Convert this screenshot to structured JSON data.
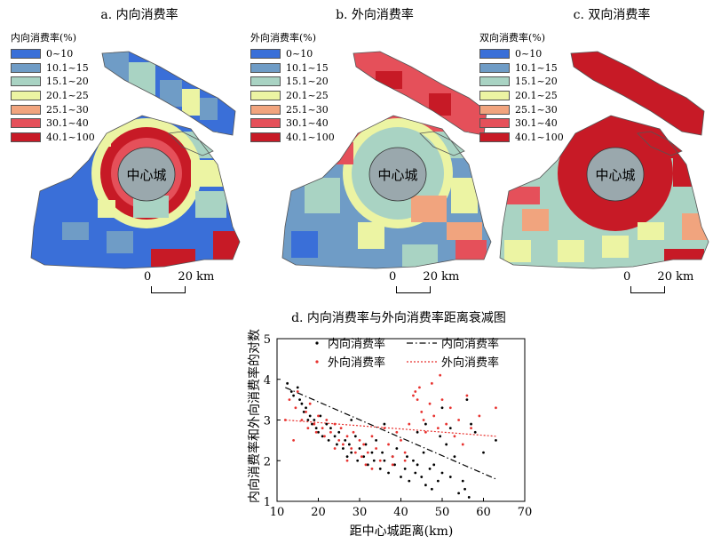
{
  "maps": [
    {
      "title": "a. 内向消费率",
      "legend_title": "内向消费率(%)"
    },
    {
      "title": "b. 外向消费率",
      "legend_title": "外向消费率(%)"
    },
    {
      "title": "c. 双向消费率",
      "legend_title": "双向消费率(%)"
    }
  ],
  "legend_classes": [
    {
      "label": "0~10",
      "color": "#3a6fd8"
    },
    {
      "label": "10.1~15",
      "color": "#6f9cc6"
    },
    {
      "label": "15.1~20",
      "color": "#a9d3c3"
    },
    {
      "label": "20.1~25",
      "color": "#ecf4a3"
    },
    {
      "label": "25.1~30",
      "color": "#f1a47e"
    },
    {
      "label": "30.1~40",
      "color": "#e5505a"
    },
    {
      "label": "40.1~100",
      "color": "#c71a26"
    }
  ],
  "center_label": "中心城",
  "scalebar": {
    "zero": "0",
    "distance": "20 km"
  },
  "chart_data": {
    "type": "scatter",
    "title": "d. 内向消费率与外向消费率距离衰减图",
    "xlabel": "距中心城距离(km)",
    "ylabel": "内向消费率和外向消费率的对数",
    "xlim": [
      10,
      70
    ],
    "ylim": [
      1,
      5
    ],
    "xticks": [
      10,
      20,
      30,
      40,
      50,
      60,
      70
    ],
    "yticks": [
      1,
      2,
      3,
      4,
      5
    ],
    "grid": false,
    "legend_position": "top",
    "series": [
      {
        "name": "内向消费率",
        "color": "#000000",
        "points": [
          [
            12.5,
            3.9
          ],
          [
            13.5,
            3.7
          ],
          [
            14,
            3.6
          ],
          [
            15,
            3.8
          ],
          [
            15.5,
            3.5
          ],
          [
            16,
            3.4
          ],
          [
            16.5,
            3.2
          ],
          [
            17,
            3.3
          ],
          [
            17.5,
            3.0
          ],
          [
            18,
            3.1
          ],
          [
            18.5,
            2.9
          ],
          [
            19,
            3.0
          ],
          [
            19.5,
            2.8
          ],
          [
            20,
            2.7
          ],
          [
            20.5,
            3.1
          ],
          [
            21,
            2.6
          ],
          [
            22,
            2.9
          ],
          [
            22.5,
            2.5
          ],
          [
            23,
            2.8
          ],
          [
            24,
            2.6
          ],
          [
            24.5,
            2.4
          ],
          [
            25,
            2.7
          ],
          [
            26,
            2.3
          ],
          [
            26.5,
            2.5
          ],
          [
            27,
            2.1
          ],
          [
            27.5,
            2.4
          ],
          [
            28,
            2.2
          ],
          [
            29,
            2.6
          ],
          [
            29.5,
            2.0
          ],
          [
            30,
            2.3
          ],
          [
            31,
            2.1
          ],
          [
            31.5,
            2.4
          ],
          [
            32,
            1.9
          ],
          [
            33,
            2.2
          ],
          [
            33.5,
            2.0
          ],
          [
            34,
            2.5
          ],
          [
            35,
            1.8
          ],
          [
            35.5,
            2.2
          ],
          [
            36,
            2.0
          ],
          [
            37,
            1.7
          ],
          [
            38,
            2.1
          ],
          [
            38.5,
            1.9
          ],
          [
            39,
            2.3
          ],
          [
            40,
            1.6
          ],
          [
            41,
            1.8
          ],
          [
            41.5,
            2.1
          ],
          [
            42,
            1.5
          ],
          [
            43,
            2.0
          ],
          [
            43.5,
            1.7
          ],
          [
            44,
            1.9
          ],
          [
            45,
            1.6
          ],
          [
            45.5,
            2.2
          ],
          [
            46,
            1.4
          ],
          [
            47,
            1.8
          ],
          [
            47.5,
            1.3
          ],
          [
            48,
            1.9
          ],
          [
            49,
            1.5
          ],
          [
            49.5,
            2.6
          ],
          [
            50,
            1.7
          ],
          [
            51,
            2.4
          ],
          [
            52,
            1.6
          ],
          [
            53,
            2.1
          ],
          [
            54,
            1.2
          ],
          [
            55,
            1.5
          ],
          [
            55.5,
            1.3
          ],
          [
            56,
            3.5
          ],
          [
            56.5,
            1.1
          ],
          [
            57,
            2.9
          ],
          [
            58,
            2.7
          ],
          [
            60,
            2.2
          ],
          [
            63,
            2.5
          ],
          [
            28,
            3.0
          ],
          [
            36,
            2.9
          ],
          [
            44,
            2.7
          ],
          [
            46,
            2.9
          ],
          [
            50,
            3.3
          ],
          [
            52,
            2.8
          ]
        ]
      },
      {
        "name": "外向消费率",
        "color": "#e8322f",
        "points": [
          [
            13,
            3.5
          ],
          [
            14.5,
            3.3
          ],
          [
            15,
            3.7
          ],
          [
            16,
            3.0
          ],
          [
            17,
            3.2
          ],
          [
            17.5,
            2.8
          ],
          [
            18,
            3.4
          ],
          [
            19,
            2.9
          ],
          [
            19.5,
            2.7
          ],
          [
            20,
            3.1
          ],
          [
            21,
            2.8
          ],
          [
            21.5,
            2.6
          ],
          [
            22,
            3.0
          ],
          [
            23,
            2.7
          ],
          [
            24,
            2.9
          ],
          [
            25,
            2.5
          ],
          [
            25.5,
            2.8
          ],
          [
            26,
            2.4
          ],
          [
            27,
            2.6
          ],
          [
            28,
            2.3
          ],
          [
            28.5,
            2.7
          ],
          [
            29,
            2.2
          ],
          [
            30,
            2.5
          ],
          [
            30.5,
            2.1
          ],
          [
            31,
            2.4
          ],
          [
            31.5,
            1.9
          ],
          [
            32,
            2.2
          ],
          [
            33,
            2.6
          ],
          [
            34,
            2.3
          ],
          [
            35,
            2.0
          ],
          [
            36,
            2.8
          ],
          [
            37,
            2.4
          ],
          [
            38,
            2.1
          ],
          [
            39,
            2.7
          ],
          [
            40,
            2.5
          ],
          [
            41,
            2.2
          ],
          [
            42,
            2.9
          ],
          [
            43,
            3.6
          ],
          [
            43.5,
            3.7
          ],
          [
            44,
            3.5
          ],
          [
            44.5,
            3.8
          ],
          [
            45,
            3.2
          ],
          [
            45.5,
            3.0
          ],
          [
            46,
            2.7
          ],
          [
            47,
            3.4
          ],
          [
            47.5,
            3.9
          ],
          [
            48,
            3.1
          ],
          [
            49,
            2.8
          ],
          [
            49.5,
            4.1
          ],
          [
            50,
            3.5
          ],
          [
            51,
            2.9
          ],
          [
            52,
            3.3
          ],
          [
            53,
            2.6
          ],
          [
            54,
            3.0
          ],
          [
            55,
            2.4
          ],
          [
            56,
            3.6
          ],
          [
            57,
            2.8
          ],
          [
            59,
            3.1
          ],
          [
            63,
            3.3
          ],
          [
            12,
            3.0
          ],
          [
            14,
            2.5
          ],
          [
            24,
            2.3
          ],
          [
            27,
            2.0
          ],
          [
            33,
            1.8
          ],
          [
            38,
            1.9
          ],
          [
            41,
            2.0
          ]
        ]
      }
    ],
    "trendlines": [
      {
        "name": "内向消费率",
        "style": "dash-dot",
        "color": "#000000",
        "x": [
          12,
          63
        ],
        "y": [
          3.8,
          1.55
        ]
      },
      {
        "name": "外向消费率",
        "style": "dotted",
        "color": "#e8322f",
        "x": [
          12,
          63
        ],
        "y": [
          3.0,
          2.6
        ]
      }
    ]
  }
}
